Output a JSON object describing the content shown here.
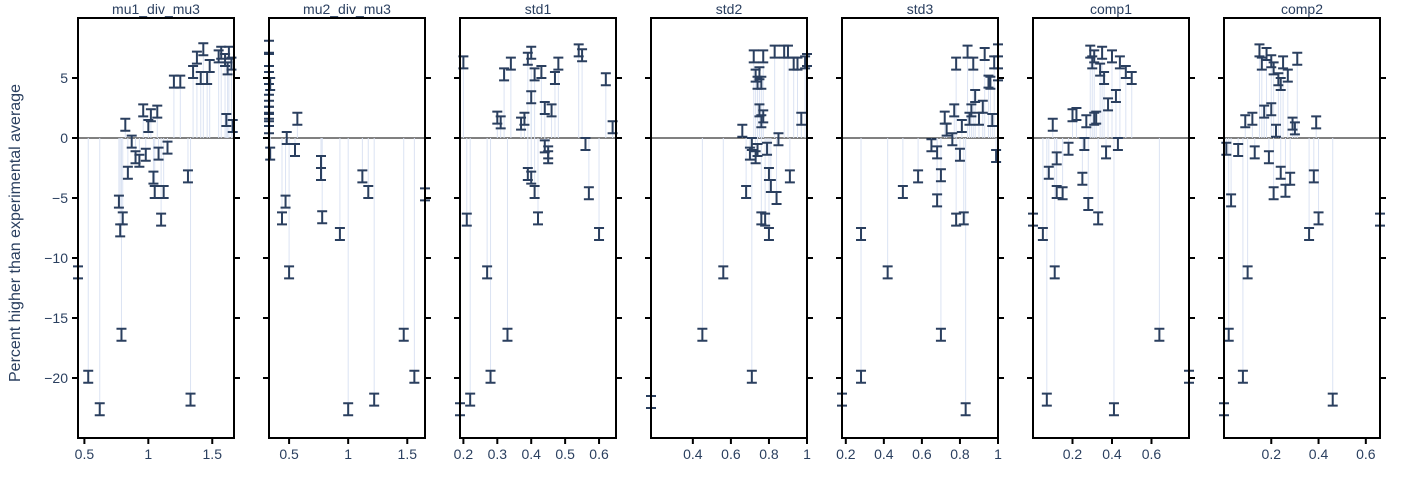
{
  "chart_data": {
    "type": "scatter",
    "layout_note_free": true,
    "ylabel": "Percent higher than experimental average",
    "ylim": [
      -25,
      10
    ],
    "yticks": [
      5,
      0,
      -5,
      -10,
      -15,
      -20
    ],
    "error_half_width": 0.5,
    "marker_color": "#2a3f5f",
    "stem_color": "#dbe3f3",
    "panels": [
      {
        "title": "mu1_div_mu3",
        "xlim": [
          0.45,
          1.67
        ],
        "xticks": [
          0.5,
          1,
          1.5
        ],
        "xtick_labels": [
          "0.5",
          "1",
          "1.5"
        ],
        "x": [
          0.45,
          0.53,
          0.62,
          0.77,
          0.78,
          0.79,
          0.8,
          0.82,
          0.84,
          0.87,
          0.9,
          0.93,
          0.96,
          0.98,
          1.0,
          1.02,
          1.04,
          1.05,
          1.07,
          1.08,
          1.1,
          1.12,
          1.15,
          1.2,
          1.25,
          1.31,
          1.33,
          1.35,
          1.38,
          1.41,
          1.43,
          1.46,
          1.48,
          1.55,
          1.57,
          1.6,
          1.61,
          1.63,
          1.65,
          1.66,
          1.62
        ],
        "y": [
          -11.2,
          -19.9,
          -22.6,
          -5.3,
          -7.7,
          -16.4,
          -6.7,
          1.1,
          -2.9,
          -0.3,
          -1.6,
          -1.9,
          2.3,
          -1.4,
          1.0,
          1.9,
          -3.3,
          -4.5,
          2.2,
          -1.3,
          -6.8,
          -4.5,
          -0.8,
          4.7,
          4.7,
          -3.2,
          -21.8,
          5.5,
          6.7,
          5.0,
          7.4,
          5.0,
          6.0,
          6.8,
          7.1,
          6.5,
          1.5,
          7.1,
          6.2,
          1.0,
          5.8
        ]
      },
      {
        "title": "mu2_div_mu3",
        "xlim": [
          0.33,
          1.65
        ],
        "xticks": [
          0.5,
          1,
          1.5
        ],
        "xtick_labels": [
          "0.5",
          "1",
          "1.5"
        ],
        "x": [
          0.33,
          0.33,
          0.33,
          0.33,
          0.33,
          0.33,
          0.33,
          0.33,
          0.34,
          0.34,
          0.44,
          0.47,
          0.48,
          0.5,
          0.55,
          0.57,
          0.77,
          0.77,
          0.78,
          0.93,
          1.0,
          1.12,
          1.17,
          1.22,
          1.47,
          1.56,
          1.65
        ],
        "y": [
          7.6,
          6.5,
          5.0,
          3.1,
          2.1,
          1.5,
          0.9,
          2.6,
          -1.3,
          4.5,
          -6.7,
          -5.3,
          0.0,
          -11.2,
          -1.0,
          1.6,
          -2.0,
          -3.0,
          -6.6,
          -8.0,
          -22.6,
          -3.2,
          -4.5,
          -21.8,
          -16.4,
          -19.9,
          -4.7
        ]
      },
      {
        "title": "std1",
        "xlim": [
          0.19,
          0.65
        ],
        "xticks": [
          0.2,
          0.3,
          0.4,
          0.5,
          0.6
        ],
        "xtick_labels": [
          "0.2",
          "0.3",
          "0.4",
          "0.5",
          "0.6"
        ],
        "x": [
          0.19,
          0.2,
          0.21,
          0.22,
          0.27,
          0.28,
          0.3,
          0.31,
          0.32,
          0.33,
          0.34,
          0.37,
          0.38,
          0.39,
          0.39,
          0.4,
          0.4,
          0.4,
          0.41,
          0.41,
          0.42,
          0.43,
          0.44,
          0.44,
          0.45,
          0.45,
          0.46,
          0.47,
          0.48,
          0.54,
          0.55,
          0.56,
          0.57,
          0.6,
          0.62,
          0.64
        ],
        "y": [
          -22.6,
          6.3,
          -6.8,
          -21.8,
          -11.2,
          -19.9,
          1.7,
          1.3,
          5.3,
          -16.4,
          6.2,
          1.2,
          1.6,
          6.6,
          -3.0,
          7.1,
          -3.3,
          3.4,
          -4.5,
          5.3,
          -6.7,
          5.5,
          2.5,
          -0.7,
          -1.6,
          -1.2,
          2.3,
          5.0,
          6.2,
          7.3,
          6.9,
          -0.5,
          -4.6,
          -8.0,
          4.9,
          0.9
        ]
      },
      {
        "title": "std2",
        "xlim": [
          0.18,
          1.0
        ],
        "xticks": [
          0.4,
          0.6,
          0.8,
          1.0
        ],
        "xtick_labels": [
          "0.4",
          "0.6",
          "0.8",
          "1"
        ],
        "x": [
          0.18,
          0.45,
          0.56,
          0.66,
          0.68,
          0.7,
          0.71,
          0.71,
          0.72,
          0.73,
          0.73,
          0.74,
          0.74,
          0.75,
          0.75,
          0.76,
          0.76,
          0.76,
          0.77,
          0.77,
          0.78,
          0.79,
          0.8,
          0.8,
          0.81,
          0.83,
          0.84,
          0.85,
          0.88,
          0.9,
          0.91,
          0.93,
          0.95,
          0.97,
          0.99,
          1.0
        ],
        "y": [
          -22.0,
          -16.4,
          -11.2,
          0.6,
          -4.5,
          -1.3,
          -19.9,
          -0.5,
          6.8,
          5.2,
          -1.6,
          4.6,
          -1.0,
          5.4,
          2.3,
          1.4,
          -6.7,
          4.6,
          6.8,
          1.8,
          -6.8,
          -0.9,
          -3.0,
          -8.0,
          -4.0,
          7.2,
          -5.0,
          -0.1,
          7.2,
          7.2,
          -3.2,
          6.2,
          6.2,
          1.6,
          6.3,
          6.5
        ]
      },
      {
        "title": "std3",
        "xlim": [
          0.18,
          1.0
        ],
        "xticks": [
          0.2,
          0.4,
          0.6,
          0.8,
          1.0
        ],
        "xtick_labels": [
          "0.2",
          "0.4",
          "0.6",
          "0.8",
          "1"
        ],
        "x": [
          0.18,
          0.28,
          0.28,
          0.42,
          0.5,
          0.58,
          0.65,
          0.68,
          0.68,
          0.7,
          0.7,
          0.72,
          0.73,
          0.76,
          0.77,
          0.78,
          0.78,
          0.8,
          0.81,
          0.82,
          0.83,
          0.84,
          0.85,
          0.86,
          0.87,
          0.88,
          0.9,
          0.92,
          0.93,
          0.95,
          0.96,
          0.97,
          0.98,
          1.0,
          1.0,
          0.99
        ],
        "y": [
          -21.8,
          -8.0,
          -19.9,
          -11.2,
          -4.5,
          -3.2,
          -0.6,
          -5.2,
          -1.2,
          -16.4,
          -3.1,
          1.7,
          0.7,
          -0.1,
          2.3,
          6.2,
          -6.8,
          -1.4,
          1.0,
          -6.7,
          -22.6,
          7.2,
          1.6,
          2.3,
          6.2,
          3.5,
          1.6,
          2.6,
          7.0,
          4.7,
          4.6,
          1.5,
          6.3,
          7.3,
          5.3,
          -1.5
        ]
      },
      {
        "title": "comp1",
        "xlim": [
          0.0,
          0.79
        ],
        "xticks": [
          0.2,
          0.4,
          0.6
        ],
        "xtick_labels": [
          "0.2",
          "0.4",
          "0.6"
        ],
        "x": [
          0.0,
          0.05,
          0.07,
          0.08,
          0.1,
          0.11,
          0.12,
          0.12,
          0.15,
          0.18,
          0.2,
          0.22,
          0.25,
          0.26,
          0.27,
          0.28,
          0.29,
          0.3,
          0.31,
          0.31,
          0.32,
          0.33,
          0.34,
          0.35,
          0.36,
          0.37,
          0.38,
          0.4,
          0.42,
          0.43,
          0.44,
          0.47,
          0.5,
          0.64,
          0.79,
          0.41
        ],
        "y": [
          -6.8,
          -8.0,
          -21.8,
          -2.9,
          1.1,
          -11.2,
          -1.7,
          -4.5,
          -4.6,
          -0.9,
          1.9,
          2.0,
          -3.4,
          -0.5,
          1.4,
          -5.5,
          7.2,
          6.3,
          6.8,
          1.6,
          1.7,
          -6.7,
          5.7,
          7.1,
          5.0,
          -1.2,
          2.8,
          6.8,
          3.5,
          -0.5,
          6.3,
          5.5,
          5.0,
          -16.4,
          -19.9,
          -22.6
        ]
      },
      {
        "title": "comp2",
        "xlim": [
          0.0,
          0.66
        ],
        "xticks": [
          0.2,
          0.4,
          0.6
        ],
        "xtick_labels": [
          "0.2",
          "0.4",
          "0.6"
        ],
        "x": [
          0.0,
          0.01,
          0.02,
          0.03,
          0.06,
          0.08,
          0.09,
          0.1,
          0.12,
          0.13,
          0.15,
          0.16,
          0.17,
          0.18,
          0.19,
          0.2,
          0.2,
          0.21,
          0.21,
          0.22,
          0.23,
          0.24,
          0.24,
          0.25,
          0.26,
          0.27,
          0.28,
          0.29,
          0.3,
          0.31,
          0.36,
          0.38,
          0.39,
          0.4,
          0.46,
          0.66
        ],
        "y": [
          -22.6,
          -0.9,
          -16.4,
          -5.2,
          -1.0,
          -19.9,
          1.4,
          -11.2,
          1.6,
          -1.2,
          7.3,
          6.2,
          2.2,
          7.0,
          -1.6,
          2.4,
          6.4,
          5.8,
          -4.6,
          0.6,
          4.9,
          4.5,
          -2.9,
          6.3,
          -4.4,
          5.2,
          -3.4,
          1.2,
          0.8,
          6.6,
          -8.0,
          -3.2,
          1.3,
          -6.7,
          -21.8,
          -6.8
        ]
      }
    ]
  }
}
